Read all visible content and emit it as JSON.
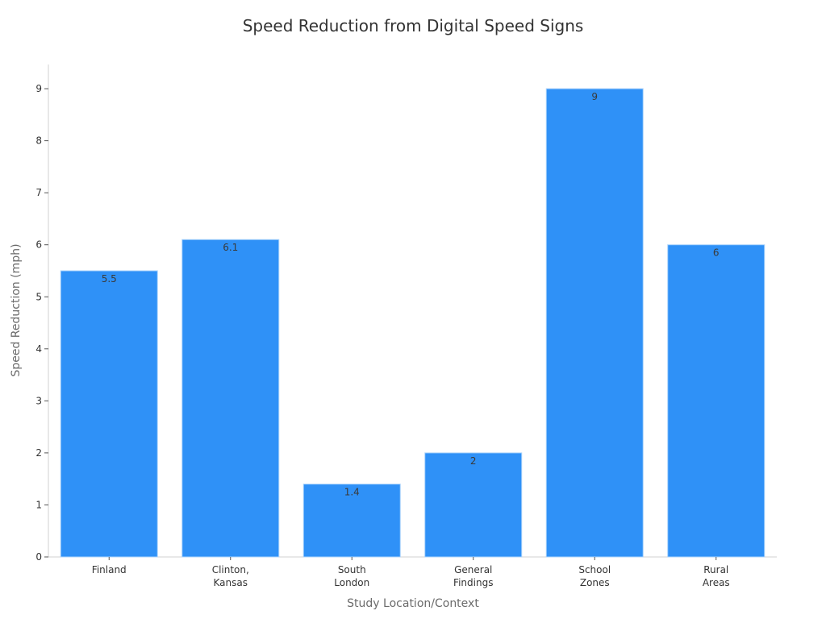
{
  "chart_data": {
    "type": "bar",
    "title": "Speed Reduction from Digital Speed Signs",
    "xlabel": "Study Location/Context",
    "ylabel": "Speed Reduction (mph)",
    "categories": [
      "Finland",
      "Clinton, Kansas",
      "South London",
      "General Findings",
      "School Zones",
      "Rural Areas"
    ],
    "category_lines": [
      [
        "Finland"
      ],
      [
        "Clinton,",
        "Kansas"
      ],
      [
        "South",
        "London"
      ],
      [
        "General",
        "Findings"
      ],
      [
        "School",
        "Zones"
      ],
      [
        "Rural",
        "Areas"
      ]
    ],
    "values": [
      5.5,
      6.1,
      1.4,
      2,
      9,
      6
    ],
    "data_labels": [
      "5.5",
      "6.1",
      "1.4",
      "2",
      "9",
      "6"
    ],
    "ylim": [
      0,
      9.45
    ],
    "yticks": [
      0,
      1,
      2,
      3,
      4,
      5,
      6,
      7,
      8,
      9
    ],
    "grid": false,
    "legend": null,
    "bar_color": "#2f91f7"
  }
}
